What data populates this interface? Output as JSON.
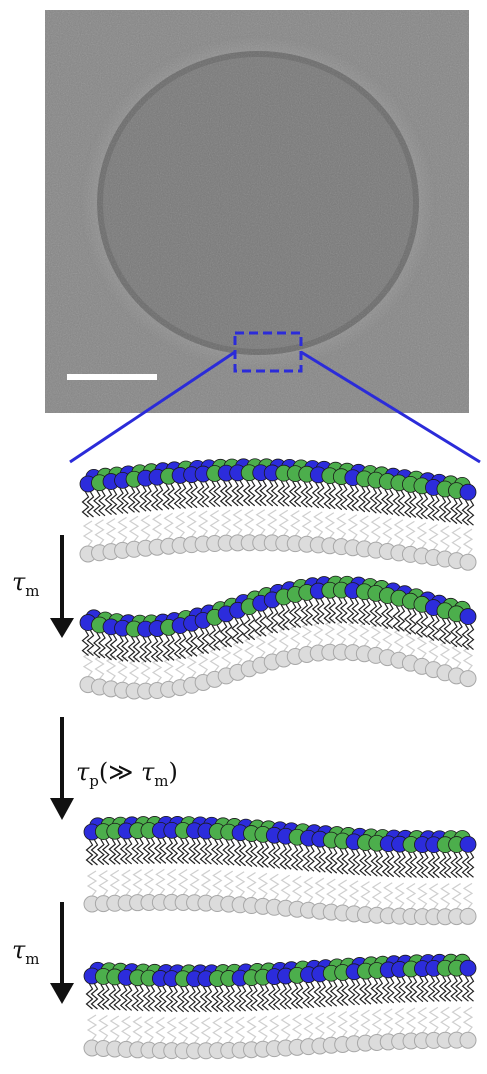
{
  "colors": {
    "headgroup_blue": "#2c2cdc",
    "headgroup_green": "#4cae4c",
    "headgroup_grey": "#dcdcdc",
    "zoom_box": "#2b2bd9",
    "scale_bar": "#ffffff",
    "arrow": "#111111"
  },
  "labels": {
    "step1": {
      "symbol": "τ",
      "sub": "m"
    },
    "step2": {
      "symbol": "τ",
      "sub": "p",
      "open": "(≫ ",
      "inner_symbol": "τ",
      "inner_sub": "m",
      "close": ")"
    },
    "step3": {
      "symbol": "τ",
      "sub": "m"
    }
  },
  "icons": {
    "arrow": "down-arrow-icon",
    "scale_bar": "scale-bar",
    "zoom_box": "dashed-zoom-box"
  },
  "states": [
    {
      "name": "initial-undulation",
      "top_pattern": "mixed-blue-left-green-right"
    },
    {
      "name": "enhanced-undulation",
      "top_pattern": "mixed-blue-left-green-right"
    },
    {
      "name": "flat-mixed",
      "top_pattern": "uniformly-mixed"
    },
    {
      "name": "flat-mixed-final",
      "top_pattern": "uniformly-mixed"
    }
  ]
}
